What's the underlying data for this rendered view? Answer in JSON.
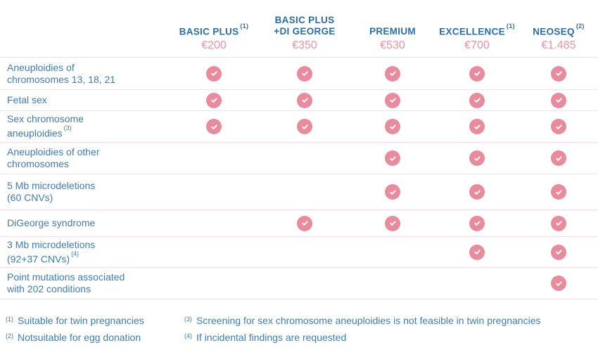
{
  "colors": {
    "heading_blue": "#2d6da7",
    "text_blue": "#3e7cb7",
    "check_pink": "#ea8a9d",
    "price_pink": "#ee92a2",
    "divider_pink": "#f8dee3",
    "check_glyph": "#ffffff"
  },
  "table": {
    "columns": [
      {
        "lines": [
          "BASIC PLUS"
        ],
        "sup": "(1)",
        "price": "€200"
      },
      {
        "lines": [
          "BASIC PLUS",
          "+DI GEORGE"
        ],
        "sup": "",
        "price": "€350"
      },
      {
        "lines": [
          "PREMIUM"
        ],
        "sup": "",
        "price": "€530"
      },
      {
        "lines": [
          "EXCELLENCE"
        ],
        "sup": "(1)",
        "price": "€700"
      },
      {
        "lines": [
          "NEOSEQ"
        ],
        "sup": "(2)",
        "price": "€1.485"
      }
    ],
    "rows": [
      {
        "lines": [
          "Aneuploidies of",
          "chromosomes 13, 18, 21"
        ],
        "sup": "",
        "checks": [
          true,
          true,
          true,
          true,
          true
        ]
      },
      {
        "lines": [
          "Fetal sex"
        ],
        "sup": "",
        "checks": [
          true,
          true,
          true,
          true,
          true
        ]
      },
      {
        "lines": [
          "Sex chromosome",
          "aneuploidies"
        ],
        "sup": "(3)",
        "checks": [
          true,
          true,
          true,
          true,
          true
        ]
      },
      {
        "lines": [
          "Aneuploidies of other",
          "chromosomes"
        ],
        "sup": "",
        "checks": [
          false,
          false,
          true,
          true,
          true
        ]
      },
      {
        "lines": [
          "5 Mb microdeletions",
          "(60 CNVs)"
        ],
        "sup": "",
        "checks": [
          false,
          false,
          true,
          true,
          true
        ]
      },
      {
        "lines": [
          "DiGeorge syndrome"
        ],
        "sup": "",
        "checks": [
          false,
          true,
          true,
          true,
          true
        ]
      },
      {
        "lines": [
          "3 Mb microdeletions",
          "(92+37 CNVs)"
        ],
        "sup": "(4)",
        "checks": [
          false,
          false,
          false,
          true,
          true
        ]
      },
      {
        "lines": [
          "Point mutations associated",
          "with 202 conditions"
        ],
        "sup": "",
        "checks": [
          false,
          false,
          false,
          false,
          true
        ]
      }
    ]
  },
  "footnotes": {
    "left": [
      {
        "marker": "(1)",
        "text": "Suitable for twin pregnancies"
      },
      {
        "marker": "(2)",
        "text": "Notsuitable for egg donation"
      }
    ],
    "right": [
      {
        "marker": "(3)",
        "text": "Screening for sex chromosome aneuploidies is not feasible in twin pregnancies"
      },
      {
        "marker": "(4)",
        "text": "If incidental findings are requested"
      }
    ]
  },
  "chart_data": {
    "type": "table",
    "columns": [
      "BASIC PLUS (1)",
      "BASIC PLUS +DI GEORGE",
      "PREMIUM",
      "EXCELLENCE (1)",
      "NEOSEQ (2)"
    ],
    "prices": [
      "€200",
      "€350",
      "€530",
      "€700",
      "€1.485"
    ],
    "rows": [
      {
        "feature": "Aneuploidies of chromosomes 13, 18, 21",
        "included": [
          true,
          true,
          true,
          true,
          true
        ]
      },
      {
        "feature": "Fetal sex",
        "included": [
          true,
          true,
          true,
          true,
          true
        ]
      },
      {
        "feature": "Sex chromosome aneuploidies (3)",
        "included": [
          true,
          true,
          true,
          true,
          true
        ]
      },
      {
        "feature": "Aneuploidies of other chromosomes",
        "included": [
          false,
          false,
          true,
          true,
          true
        ]
      },
      {
        "feature": "5 Mb microdeletions (60 CNVs)",
        "included": [
          false,
          false,
          true,
          true,
          true
        ]
      },
      {
        "feature": "DiGeorge syndrome",
        "included": [
          false,
          true,
          true,
          true,
          true
        ]
      },
      {
        "feature": "3 Mb microdeletions (92+37 CNVs) (4)",
        "included": [
          false,
          false,
          false,
          true,
          true
        ]
      },
      {
        "feature": "Point mutations associated with 202 conditions",
        "included": [
          false,
          false,
          false,
          false,
          true
        ]
      }
    ],
    "footnotes": [
      "(1) Suitable for twin pregnancies",
      "(2) Notsuitable for egg donation",
      "(3) Screening for sex chromosome aneuploidies is not feasible in twin pregnancies",
      "(4) If incidental findings are requested"
    ],
    "legend_position": "none",
    "grid": "horizontal-dividers-only"
  }
}
